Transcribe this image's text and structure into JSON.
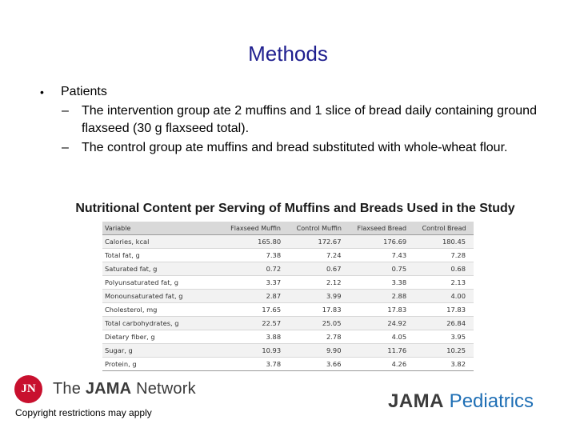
{
  "title": "Methods",
  "bullets": {
    "main": "Patients",
    "subs": [
      "The intervention group ate 2 muffins and 1 slice of bread daily containing ground flaxseed (30 g flaxseed total).",
      "The control group ate muffins and bread substituted with whole-wheat flour."
    ]
  },
  "table": {
    "caption": "Nutritional Content per Serving of Muffins and Breads Used in the Study",
    "headers": [
      "Variable",
      "Flaxseed Muffin",
      "Control Muffin",
      "Flaxseed Bread",
      "Control Bread"
    ],
    "rows": [
      [
        "Calories, kcal",
        "165.80",
        "172.67",
        "176.69",
        "180.45"
      ],
      [
        "Total fat, g",
        "7.38",
        "7.24",
        "7.43",
        "7.28"
      ],
      [
        "Saturated fat, g",
        "0.72",
        "0.67",
        "0.75",
        "0.68"
      ],
      [
        "Polyunsaturated fat, g",
        "3.37",
        "2.12",
        "3.38",
        "2.13"
      ],
      [
        "Monounsaturated fat, g",
        "2.87",
        "3.99",
        "2.88",
        "4.00"
      ],
      [
        "Cholesterol, mg",
        "17.65",
        "17.83",
        "17.83",
        "17.83"
      ],
      [
        "Total carbohydrates, g",
        "22.57",
        "25.05",
        "24.92",
        "26.84"
      ],
      [
        "Dietary fiber, g",
        "3.88",
        "2.78",
        "4.05",
        "3.95"
      ],
      [
        "Sugar, g",
        "10.93",
        "9.90",
        "11.76",
        "10.25"
      ],
      [
        "Protein, g",
        "3.78",
        "3.66",
        "4.26",
        "3.82"
      ]
    ]
  },
  "logo_left": {
    "mark": "JN",
    "text_pre": "The ",
    "text_bold": "JAMA",
    "text_post": " Network"
  },
  "copyright": "Copyright restrictions may apply",
  "logo_right": {
    "bold": "JAMA",
    "rest": " Pediatrics"
  },
  "colors": {
    "title": "#1f1f8f",
    "jama_red": "#c8102e",
    "pediatrics_blue": "#1f6fb5"
  }
}
